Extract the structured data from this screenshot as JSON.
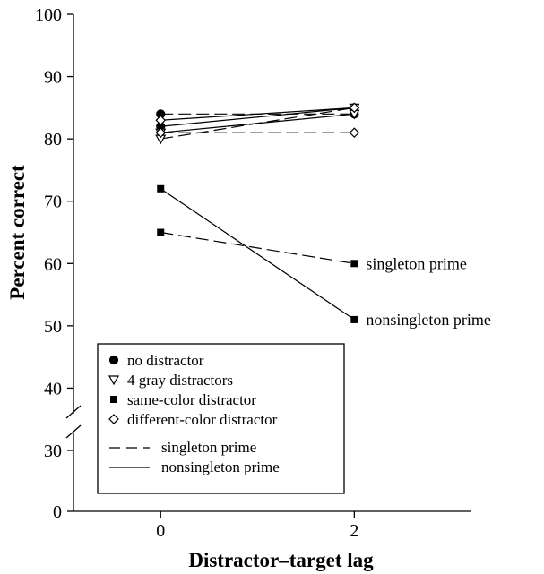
{
  "chart_data": {
    "type": "line",
    "xlabel": "Distractor–target lag",
    "ylabel": "Percent correct",
    "x_ticks": [
      0,
      2
    ],
    "y_ticks": [
      0,
      30,
      40,
      50,
      60,
      70,
      80,
      90,
      100
    ],
    "ylim": [
      0,
      100
    ],
    "y_axis_break": [
      0,
      30
    ],
    "xlim": [
      -0.9,
      3.2
    ],
    "grid": false,
    "legend_position": "bottom-left",
    "legend": {
      "markers": [
        {
          "label": "no distractor",
          "marker": "filled-circle"
        },
        {
          "label": "4 gray distractors",
          "marker": "open-triangle-down"
        },
        {
          "label": "same-color distractor",
          "marker": "filled-square"
        },
        {
          "label": "different-color distractor",
          "marker": "open-diamond"
        }
      ],
      "lines": [
        {
          "label": "singleton prime",
          "style": "dashed"
        },
        {
          "label": "nonsingleton prime",
          "style": "solid"
        }
      ]
    },
    "series": [
      {
        "condition": "no distractor",
        "prime": "singleton prime",
        "marker": "filled-circle",
        "style": "dashed",
        "x": [
          0,
          2
        ],
        "y": [
          84,
          84
        ]
      },
      {
        "condition": "no distractor",
        "prime": "nonsingleton prime",
        "marker": "filled-circle",
        "style": "solid",
        "x": [
          0,
          2
        ],
        "y": [
          82,
          85
        ]
      },
      {
        "condition": "4 gray distractors",
        "prime": "singleton prime",
        "marker": "open-triangle-down",
        "style": "dashed",
        "x": [
          0,
          2
        ],
        "y": [
          80,
          85
        ]
      },
      {
        "condition": "4 gray distractors",
        "prime": "nonsingleton prime",
        "marker": "open-triangle-down",
        "style": "solid",
        "x": [
          0,
          2
        ],
        "y": [
          81,
          84
        ]
      },
      {
        "condition": "different-color distractor",
        "prime": "singleton prime",
        "marker": "open-diamond",
        "style": "dashed",
        "x": [
          0,
          2
        ],
        "y": [
          81,
          81
        ]
      },
      {
        "condition": "different-color distractor",
        "prime": "nonsingleton prime",
        "marker": "open-diamond",
        "style": "solid",
        "x": [
          0,
          2
        ],
        "y": [
          83,
          85
        ]
      },
      {
        "condition": "same-color distractor",
        "prime": "singleton prime",
        "marker": "filled-square",
        "style": "dashed",
        "x": [
          0,
          2
        ],
        "y": [
          65,
          60
        ]
      },
      {
        "condition": "same-color distractor",
        "prime": "nonsingleton prime",
        "marker": "filled-square",
        "style": "solid",
        "x": [
          0,
          2
        ],
        "y": [
          72,
          51
        ]
      }
    ],
    "annotations": [
      {
        "text": "singleton prime",
        "x": 2,
        "y": 60
      },
      {
        "text": "nonsingleton prime",
        "x": 2,
        "y": 51
      }
    ]
  }
}
